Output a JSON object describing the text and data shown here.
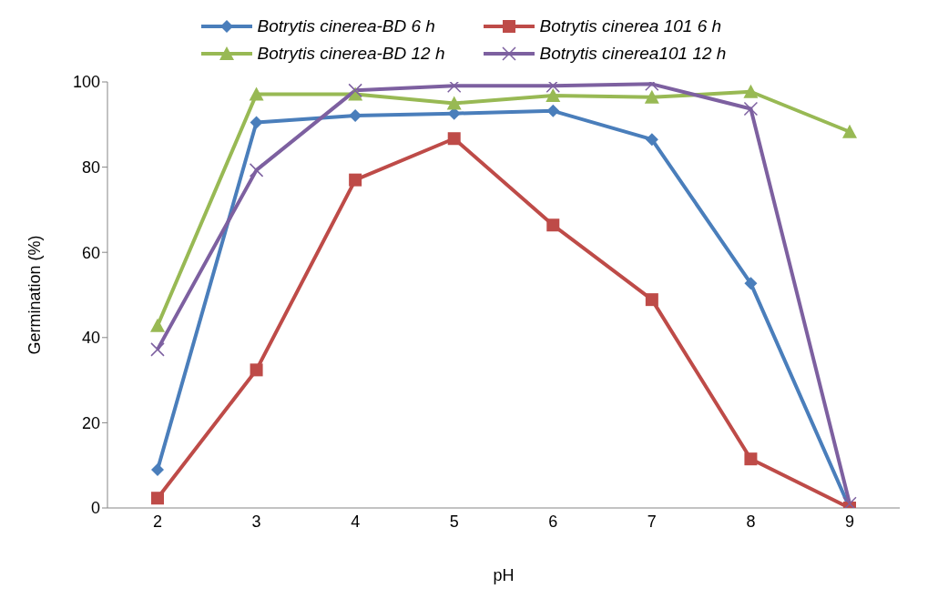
{
  "chart_data": {
    "type": "line",
    "xlabel": "pH",
    "ylabel": "Germination (%)",
    "categories": [
      "2",
      "3",
      "4",
      "5",
      "6",
      "7",
      "8",
      "9"
    ],
    "series": [
      {
        "name": "Botrytis cinerea-BD 6 h",
        "color": "#4a7ebb",
        "marker": "diamond",
        "values": [
          9.0,
          90.5,
          92.1,
          92.6,
          93.2,
          86.5,
          52.7,
          0
        ]
      },
      {
        "name": "Botrytis cinerea 101 6 h",
        "color": "#be4b48",
        "marker": "square",
        "values": [
          2.3,
          32.4,
          77,
          86.7,
          66.4,
          48.9,
          11.5,
          0
        ]
      },
      {
        "name": "Botrytis cinerea-BD 12 h",
        "color": "#98b954",
        "marker": "triangle",
        "values": [
          42.8,
          97.1,
          97.1,
          95,
          96.8,
          96.4,
          97.7,
          88.3
        ]
      },
      {
        "name": "Botrytis cinerea101 12 h",
        "color": "#7d60a0",
        "marker": "cross",
        "values": [
          37.2,
          79.3,
          98,
          99.1,
          99.1,
          99.5,
          93.7,
          1
        ]
      }
    ],
    "ylim": [
      0,
      100
    ],
    "yticks": [
      0,
      20,
      40,
      60,
      80,
      100
    ],
    "grid": false,
    "legend": "top",
    "line_style": "solid"
  }
}
